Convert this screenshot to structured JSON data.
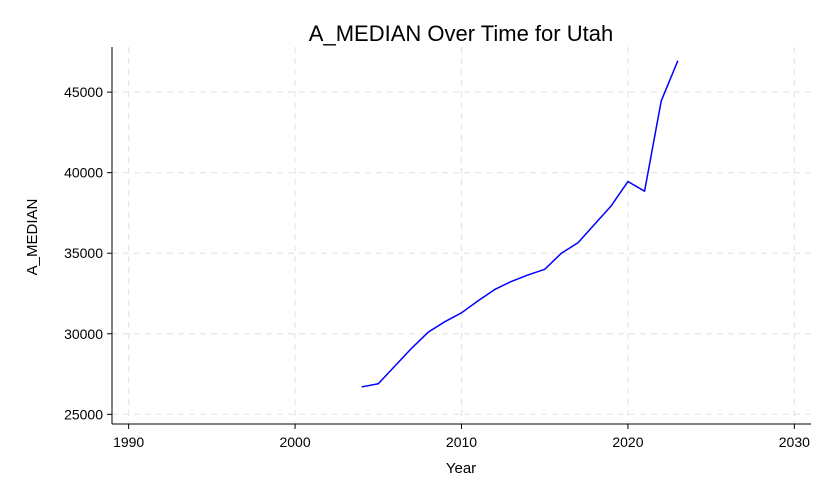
{
  "chart_data": {
    "type": "line",
    "title": "A_MEDIAN Over Time for Utah",
    "xlabel": "Year",
    "ylabel": "A_MEDIAN",
    "xlim": [
      1989,
      2031
    ],
    "ylim": [
      24400,
      47800
    ],
    "x_ticks": [
      1990,
      2000,
      2010,
      2020,
      2030
    ],
    "y_ticks": [
      25000,
      30000,
      35000,
      40000,
      45000
    ],
    "grid": true,
    "series": [
      {
        "color": "#0000ff",
        "x": [
          2004,
          2005,
          2006,
          2007,
          2008,
          2009,
          2010,
          2011,
          2012,
          2013,
          2014,
          2015,
          2016,
          2017,
          2018,
          2019,
          2020,
          2021,
          2022,
          2023
        ],
        "y": [
          26700,
          26900,
          28000,
          29100,
          30100,
          30750,
          31300,
          32050,
          32750,
          33250,
          33650,
          34000,
          35000,
          35650,
          36800,
          37950,
          39450,
          38850,
          44450,
          46950
        ]
      }
    ]
  }
}
